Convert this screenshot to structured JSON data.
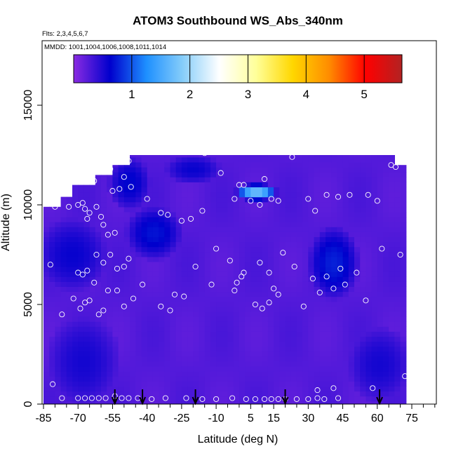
{
  "chart_data": {
    "type": "heatmap",
    "title": "ATOM3 Southbound WS_Abs_340nm",
    "flights_note": "Flts: 2,3,4,5,6,7",
    "dates_note": "MMDD: 1001,1004,1006,1008,1011,1014",
    "xlabel": "Latitude (deg N)",
    "ylabel": "Altitude (m)",
    "xlim": [
      -85,
      85
    ],
    "ylim": [
      0,
      17500
    ],
    "x_ticks": [
      -85,
      -70,
      -55,
      -40,
      -25,
      -10,
      5,
      15,
      30,
      45,
      60,
      75
    ],
    "x_tick_labels": [
      "-85",
      "-70",
      "-55",
      "-40",
      "-25",
      "-10",
      "5",
      "15",
      "30",
      "45",
      "60",
      "75"
    ],
    "y_ticks": [
      0,
      5000,
      10000,
      15000
    ],
    "y_tick_labels": [
      "0",
      "5000",
      "10000",
      "15000"
    ],
    "colorbar": {
      "range": [
        0,
        5.65
      ],
      "ticks": [
        1,
        2,
        3,
        4,
        5
      ],
      "tick_labels": [
        "1",
        "2",
        "3",
        "4",
        "5"
      ],
      "colors": [
        "#8a2be2",
        "#0000cd",
        "#1e90ff",
        "#87cefa",
        "#ffffff",
        "#ffff99",
        "#ffd700",
        "#ff8c00",
        "#ff0000",
        "#b22222"
      ]
    },
    "grid": false,
    "legend": "top (horizontal colorbar)",
    "field_extent": {
      "lat": [
        -85,
        72
      ],
      "alt": [
        150,
        12500
      ]
    },
    "field_values": {
      "background": 0.25,
      "darker_patches": [
        {
          "lat": [
            -47,
            -27
          ],
          "alt": [
            7500,
            9700
          ],
          "value": 0.65
        },
        {
          "lat": [
            32,
            50
          ],
          "alt": [
            5600,
            8600
          ],
          "value": 0.7
        },
        {
          "lat": [
            -55,
            -40
          ],
          "alt": [
            10000,
            12200
          ],
          "value": 0.6
        },
        {
          "lat": [
            -30,
            -10
          ],
          "alt": [
            11200,
            12400
          ],
          "value": 0.55
        },
        {
          "lat": [
            -85,
            -60
          ],
          "alt": [
            6000,
            9000
          ],
          "value": 0.55
        },
        {
          "lat": [
            50,
            72
          ],
          "alt": [
            500,
            3500
          ],
          "value": 0.5
        },
        {
          "lat": [
            -80,
            -55
          ],
          "alt": [
            300,
            4000
          ],
          "value": 0.5
        },
        {
          "lat": [
            0,
            15
          ],
          "alt": [
            10300,
            11000
          ],
          "value": 1.6
        }
      ]
    },
    "sample_points": [
      {
        "lat": -82,
        "alt": 7000
      },
      {
        "lat": -80,
        "alt": 9900
      },
      {
        "lat": -77,
        "alt": 4500
      },
      {
        "lat": -74,
        "alt": 9900
      },
      {
        "lat": -70,
        "alt": 10000
      },
      {
        "lat": -68,
        "alt": 10100
      },
      {
        "lat": -67,
        "alt": 9800
      },
      {
        "lat": -65,
        "alt": 9600
      },
      {
        "lat": -66,
        "alt": 9300
      },
      {
        "lat": -62,
        "alt": 9900
      },
      {
        "lat": -60,
        "alt": 9400
      },
      {
        "lat": -59,
        "alt": 9000
      },
      {
        "lat": -57,
        "alt": 8500
      },
      {
        "lat": -54,
        "alt": 8600
      },
      {
        "lat": -63,
        "alt": 11200
      },
      {
        "lat": -56,
        "alt": 11800
      },
      {
        "lat": -50,
        "alt": 11400
      },
      {
        "lat": -47,
        "alt": 10900
      },
      {
        "lat": -55,
        "alt": 10700
      },
      {
        "lat": -52,
        "alt": 10800
      },
      {
        "lat": -48,
        "alt": 12200
      },
      {
        "lat": -70,
        "alt": 6600
      },
      {
        "lat": -68,
        "alt": 6500
      },
      {
        "lat": -66,
        "alt": 6700
      },
      {
        "lat": -62,
        "alt": 7500
      },
      {
        "lat": -59,
        "alt": 7100
      },
      {
        "lat": -56,
        "alt": 7500
      },
      {
        "lat": -53,
        "alt": 6800
      },
      {
        "lat": -50,
        "alt": 6900
      },
      {
        "lat": -48,
        "alt": 7300
      },
      {
        "lat": -72,
        "alt": 5300
      },
      {
        "lat": -69,
        "alt": 4800
      },
      {
        "lat": -67,
        "alt": 5100
      },
      {
        "lat": -65,
        "alt": 5200
      },
      {
        "lat": -63,
        "alt": 6100
      },
      {
        "lat": -61,
        "alt": 4500
      },
      {
        "lat": -59,
        "alt": 4700
      },
      {
        "lat": -57,
        "alt": 5700
      },
      {
        "lat": -53,
        "alt": 5700
      },
      {
        "lat": -50,
        "alt": 4900
      },
      {
        "lat": -46,
        "alt": 5300
      },
      {
        "lat": -42,
        "alt": 6000
      },
      {
        "lat": -40,
        "alt": 10300
      },
      {
        "lat": -34,
        "alt": 9600
      },
      {
        "lat": -31,
        "alt": 9500
      },
      {
        "lat": -25,
        "alt": 9200
      },
      {
        "lat": -21,
        "alt": 9300
      },
      {
        "lat": -16,
        "alt": 9700
      },
      {
        "lat": -19,
        "alt": 6900
      },
      {
        "lat": -10,
        "alt": 7800
      },
      {
        "lat": -8,
        "alt": 11600
      },
      {
        "lat": 0,
        "alt": 11000
      },
      {
        "lat": 2,
        "alt": 11000
      },
      {
        "lat": 11,
        "alt": 11300
      },
      {
        "lat": 23,
        "alt": 12400
      },
      {
        "lat": -2,
        "alt": 10300
      },
      {
        "lat": 5,
        "alt": 10200
      },
      {
        "lat": 9,
        "alt": 10000
      },
      {
        "lat": 14,
        "alt": 10300
      },
      {
        "lat": 17,
        "alt": 10200
      },
      {
        "lat": 19,
        "alt": 7600
      },
      {
        "lat": 13,
        "alt": 6600
      },
      {
        "lat": 9,
        "alt": 7100
      },
      {
        "lat": -4,
        "alt": 7200
      },
      {
        "lat": -1,
        "alt": 6100
      },
      {
        "lat": 1,
        "alt": 6400
      },
      {
        "lat": 2,
        "alt": 6600
      },
      {
        "lat": -2,
        "alt": 5700
      },
      {
        "lat": 7,
        "alt": 5000
      },
      {
        "lat": 15,
        "alt": 5800
      },
      {
        "lat": 17,
        "alt": 5500
      },
      {
        "lat": 13,
        "alt": 5100
      },
      {
        "lat": 10,
        "alt": 4800
      },
      {
        "lat": -12,
        "alt": 6000
      },
      {
        "lat": -24,
        "alt": 5400
      },
      {
        "lat": -28,
        "alt": 5500
      },
      {
        "lat": -30,
        "alt": 4700
      },
      {
        "lat": -34,
        "alt": 4900
      },
      {
        "lat": 24,
        "alt": 6900
      },
      {
        "lat": 30,
        "alt": 10300
      },
      {
        "lat": 33,
        "alt": 9700
      },
      {
        "lat": 38,
        "alt": 10500
      },
      {
        "lat": 43,
        "alt": 10400
      },
      {
        "lat": 48,
        "alt": 10500
      },
      {
        "lat": 56,
        "alt": 10500
      },
      {
        "lat": 60,
        "alt": 10200
      },
      {
        "lat": 62,
        "alt": 7800
      },
      {
        "lat": 66,
        "alt": 12000
      },
      {
        "lat": 68,
        "alt": 11900
      },
      {
        "lat": 70,
        "alt": 7500
      },
      {
        "lat": 32,
        "alt": 6300
      },
      {
        "lat": 35,
        "alt": 5600
      },
      {
        "lat": 38,
        "alt": 6400
      },
      {
        "lat": 41,
        "alt": 5800
      },
      {
        "lat": 44,
        "alt": 6800
      },
      {
        "lat": 46,
        "alt": 6000
      },
      {
        "lat": 51,
        "alt": 6600
      },
      {
        "lat": 55,
        "alt": 5200
      },
      {
        "lat": 28,
        "alt": 4900
      },
      {
        "lat": 41,
        "alt": 800
      },
      {
        "lat": 43,
        "alt": 300
      },
      {
        "lat": 58,
        "alt": 800
      },
      {
        "lat": 72,
        "alt": 1400
      },
      {
        "lat": 34,
        "alt": 700
      },
      {
        "lat": 34,
        "alt": 300
      },
      {
        "lat": -81,
        "alt": 1000
      },
      {
        "lat": -77,
        "alt": 300
      },
      {
        "lat": -70,
        "alt": 300
      },
      {
        "lat": -67,
        "alt": 300
      },
      {
        "lat": -64,
        "alt": 300
      },
      {
        "lat": -61,
        "alt": 300
      },
      {
        "lat": -58,
        "alt": 300
      },
      {
        "lat": -54,
        "alt": 400
      },
      {
        "lat": -51,
        "alt": 300
      },
      {
        "lat": -48,
        "alt": 300
      },
      {
        "lat": -44,
        "alt": 300
      },
      {
        "lat": -38,
        "alt": 250
      },
      {
        "lat": -32,
        "alt": 300
      },
      {
        "lat": -23,
        "alt": 300
      },
      {
        "lat": -16,
        "alt": 250
      },
      {
        "lat": -10,
        "alt": 250
      },
      {
        "lat": -3,
        "alt": 300
      },
      {
        "lat": 3,
        "alt": 250
      },
      {
        "lat": 7,
        "alt": 250
      },
      {
        "lat": 11,
        "alt": 250
      },
      {
        "lat": 14,
        "alt": 250
      },
      {
        "lat": 17,
        "alt": 250
      },
      {
        "lat": 20,
        "alt": 250
      },
      {
        "lat": 25,
        "alt": 250
      },
      {
        "lat": 30,
        "alt": 250
      },
      {
        "lat": 37,
        "alt": 250
      },
      {
        "lat": -15,
        "alt": 12600
      }
    ],
    "arrows_lat": [
      -54,
      -42,
      -19,
      20,
      61
    ]
  }
}
